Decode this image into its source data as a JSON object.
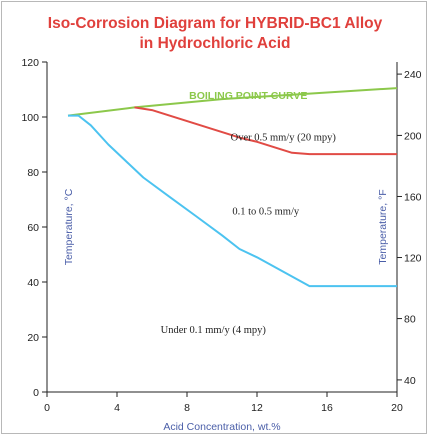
{
  "chart_data": {
    "type": "line",
    "title_lines": [
      "Iso-Corrosion Diagram for HYBRID-BC1 Alloy",
      "in Hydrochloric Acid"
    ],
    "xlabel": "Acid Concentration, wt.%",
    "ylabel": "Temperature, °C",
    "y2label": "Temperature, °F",
    "xlim": [
      0,
      20
    ],
    "ylim": [
      0,
      120
    ],
    "x_ticks": [
      0,
      4,
      8,
      12,
      16,
      20
    ],
    "y_ticks": [
      0,
      20,
      40,
      60,
      80,
      100,
      120
    ],
    "y2_ticks": [
      {
        "label": "40",
        "value_c": 4.4
      },
      {
        "label": "80",
        "value_c": 26.7
      },
      {
        "label": "120",
        "value_c": 48.9
      },
      {
        "label": "160",
        "value_c": 71.1
      },
      {
        "label": "200",
        "value_c": 93.3
      },
      {
        "label": "240",
        "value_c": 115.6
      }
    ],
    "grid": false,
    "series": [
      {
        "name": "BOILING POINT CURVE",
        "color": "#8cc84b",
        "points": [
          [
            1.2,
            100.5
          ],
          [
            5,
            103.5
          ],
          [
            10,
            106.5
          ],
          [
            15,
            108.5
          ],
          [
            20,
            110.5
          ]
        ]
      },
      {
        "color": "#e14b45",
        "points": [
          [
            5,
            103.5
          ],
          [
            6,
            102.5
          ],
          [
            7,
            100.5
          ],
          [
            8,
            98.5
          ],
          [
            9,
            96.5
          ],
          [
            10,
            94.5
          ],
          [
            11,
            92.5
          ],
          [
            12,
            91
          ],
          [
            13,
            89
          ],
          [
            14,
            87
          ],
          [
            15,
            86.5
          ],
          [
            16,
            86.5
          ],
          [
            17,
            86.5
          ],
          [
            18,
            86.5
          ],
          [
            19,
            86.5
          ],
          [
            20,
            86.5
          ]
        ]
      },
      {
        "color": "#4cc3f0",
        "points": [
          [
            1.2,
            100.5
          ],
          [
            1.8,
            100.5
          ],
          [
            2.5,
            97
          ],
          [
            3.5,
            90
          ],
          [
            4.5,
            84
          ],
          [
            5.5,
            78
          ],
          [
            7,
            71
          ],
          [
            8.5,
            64
          ],
          [
            10,
            57
          ],
          [
            11,
            52
          ],
          [
            12,
            49
          ],
          [
            13,
            45.5
          ],
          [
            14,
            42
          ],
          [
            15,
            38.5
          ],
          [
            16,
            38.5
          ],
          [
            18,
            38.5
          ],
          [
            20,
            38.5
          ]
        ]
      }
    ],
    "annotations": [
      {
        "text": "Over 0.5 mm/y (20 mpy)",
        "x": 13.5,
        "y": 93
      },
      {
        "text": "0.1 to 0.5 mm/y",
        "x": 12.5,
        "y": 66
      },
      {
        "text": "Under 0.1 mm/y (4 mpy)",
        "x": 9.5,
        "y": 23
      }
    ]
  }
}
